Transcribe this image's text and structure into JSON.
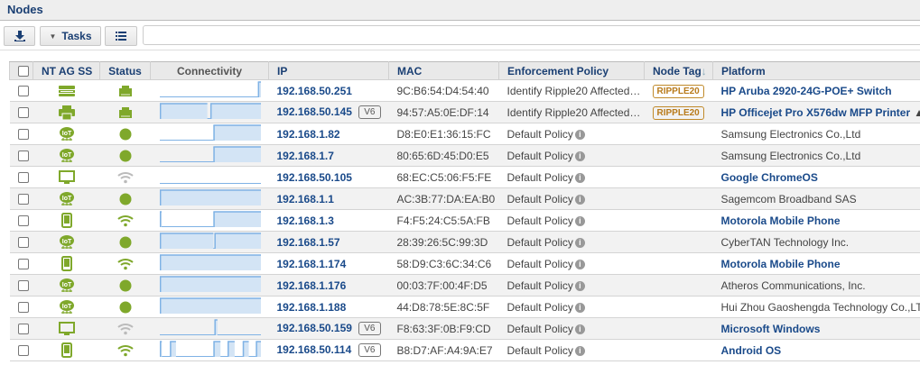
{
  "title": "Nodes",
  "toolbar": {
    "download_icon": "download-icon",
    "tasks_label": "Tasks",
    "list_icon": "list-icon",
    "search_placeholder": ""
  },
  "columns": [
    "NT AG SS",
    "Status",
    "Connectivity",
    "IP",
    "MAC",
    "Enforcement Policy",
    "Node Tag",
    "Platform"
  ],
  "sort_indicator": "↓",
  "colors": {
    "brand": "#1a3f73",
    "green": "#7fa82b",
    "gray_wifi": "#bbbbbb",
    "tag": "#b87a1a",
    "spark_fill": "#d3e4f5",
    "spark_line": "#7fb2e5"
  },
  "rows": [
    {
      "type": "switch",
      "status": "ethernet",
      "online": [
        [
          0.97,
          1
        ]
      ],
      "ip": "192.168.50.251",
      "v6": "",
      "mac": "9C:B6:54:D4:54:40",
      "policy": "Identify Ripple20 Affected…",
      "policy_info": false,
      "tag": "RIPPLE20",
      "platform": "HP Aruba 2920-24G-POE+ Switch",
      "platform_link": true,
      "warning": false
    },
    {
      "type": "printer",
      "status": "ethernet",
      "online": [
        [
          0,
          0.47
        ],
        [
          0.5,
          1
        ]
      ],
      "ip": "192.168.50.145",
      "v6": "V6",
      "mac": "94:57:A5:0E:DF:14",
      "policy": "Identify Ripple20 Affected…",
      "policy_info": false,
      "tag": "RIPPLE20",
      "platform": "HP Officejet Pro X576dw MFP Printer",
      "platform_link": true,
      "warning": true
    },
    {
      "type": "iot",
      "status": "dot",
      "online": [
        [
          0.53,
          1
        ]
      ],
      "ip": "192.168.1.82",
      "v6": "",
      "mac": "D8:E0:E1:36:15:FC",
      "policy": "Default Policy",
      "policy_info": true,
      "tag": "",
      "platform": "Samsung Electronics Co.,Ltd",
      "platform_link": false,
      "warning": false
    },
    {
      "type": "iot",
      "status": "dot",
      "online": [
        [
          0.53,
          1
        ]
      ],
      "ip": "192.168.1.7",
      "v6": "",
      "mac": "80:65:6D:45:D0:E5",
      "policy": "Default Policy",
      "policy_info": true,
      "tag": "",
      "platform": "Samsung Electronics Co.,Ltd",
      "platform_link": false,
      "warning": false
    },
    {
      "type": "monitor",
      "status": "wifi-gray",
      "online": [],
      "ip": "192.168.50.105",
      "v6": "",
      "mac": "68:EC:C5:06:F5:FE",
      "policy": "Default Policy",
      "policy_info": true,
      "tag": "",
      "platform": "Google ChromeOS",
      "platform_link": true,
      "warning": false
    },
    {
      "type": "iot",
      "status": "dot",
      "online": [
        [
          0,
          1
        ]
      ],
      "ip": "192.168.1.1",
      "v6": "",
      "mac": "AC:3B:77:DA:EA:B0",
      "policy": "Default Policy",
      "policy_info": true,
      "tag": "",
      "platform": "Sagemcom Broadband SAS",
      "platform_link": false,
      "warning": false
    },
    {
      "type": "phone",
      "status": "wifi-green",
      "online": [
        [
          0,
          0.01
        ],
        [
          0.53,
          1
        ]
      ],
      "ip": "192.168.1.3",
      "v6": "",
      "mac": "F4:F5:24:C5:5A:FB",
      "policy": "Default Policy",
      "policy_info": true,
      "tag": "",
      "platform": "Motorola Mobile Phone",
      "platform_link": true,
      "warning": false
    },
    {
      "type": "iot",
      "status": "dot",
      "online": [
        [
          0,
          0.53
        ],
        [
          0.54,
          1
        ]
      ],
      "ip": "192.168.1.57",
      "v6": "",
      "mac": "28:39:26:5C:99:3D",
      "policy": "Default Policy",
      "policy_info": true,
      "tag": "",
      "platform": "CyberTAN Technology Inc.",
      "platform_link": false,
      "warning": false
    },
    {
      "type": "phone",
      "status": "wifi-green",
      "online": [
        [
          0,
          1
        ]
      ],
      "ip": "192.168.1.174",
      "v6": "",
      "mac": "58:D9:C3:6C:34:C6",
      "policy": "Default Policy",
      "policy_info": true,
      "tag": "",
      "platform": "Motorola Mobile Phone",
      "platform_link": true,
      "warning": false
    },
    {
      "type": "iot",
      "status": "dot",
      "online": [
        [
          0,
          1
        ]
      ],
      "ip": "192.168.1.176",
      "v6": "",
      "mac": "00:03:7F:00:4F:D5",
      "policy": "Default Policy",
      "policy_info": true,
      "tag": "",
      "platform": "Atheros Communications, Inc.",
      "platform_link": false,
      "warning": false
    },
    {
      "type": "iot",
      "status": "dot",
      "online": [
        [
          0,
          1
        ]
      ],
      "ip": "192.168.1.188",
      "v6": "",
      "mac": "44:D8:78:5E:8C:5F",
      "policy": "Default Policy",
      "policy_info": true,
      "tag": "",
      "platform": "Hui Zhou Gaoshengda Technology Co.,LTD",
      "platform_link": false,
      "warning": false
    },
    {
      "type": "monitor",
      "status": "wifi-gray",
      "online": [
        [
          0.54,
          0.57
        ]
      ],
      "ip": "192.168.50.159",
      "v6": "V6",
      "mac": "F8:63:3F:0B:F9:CD",
      "policy": "Default Policy",
      "policy_info": true,
      "tag": "",
      "platform": "Microsoft Windows",
      "platform_link": true,
      "warning": false
    },
    {
      "type": "phone",
      "status": "wifi-green",
      "online": [
        [
          0,
          0.02
        ],
        [
          0.1,
          0.16
        ],
        [
          0.53,
          0.6
        ],
        [
          0.67,
          0.74
        ],
        [
          0.82,
          0.88
        ],
        [
          0.95,
          1
        ]
      ],
      "ip": "192.168.50.114",
      "v6": "V6",
      "mac": "B8:D7:AF:A4:9A:E7",
      "policy": "Default Policy",
      "policy_info": true,
      "tag": "",
      "platform": "Android OS",
      "platform_link": true,
      "warning": false
    }
  ]
}
